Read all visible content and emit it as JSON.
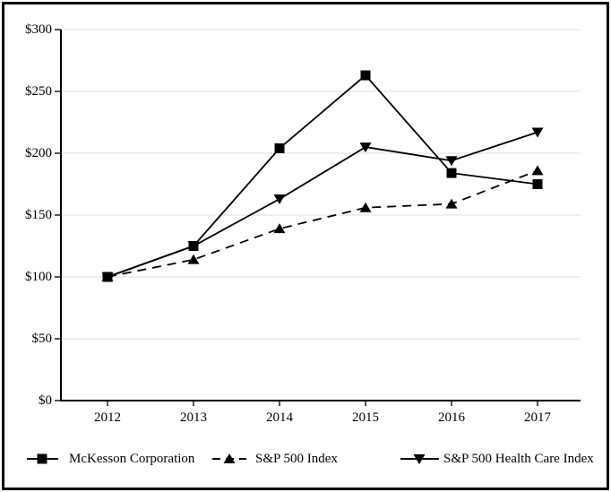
{
  "figure": {
    "kind": "cumulative-total-return-performance-graph",
    "background_color": "#ffffff",
    "frame_color": "#000000"
  },
  "chart_data": {
    "type": "line",
    "title": "",
    "xlabel": "",
    "ylabel": "",
    "categories": [
      "2012",
      "2013",
      "2014",
      "2015",
      "2016",
      "2017"
    ],
    "series": [
      {
        "name": "McKesson Corporation",
        "marker": "square",
        "line": "solid",
        "color": "#000000",
        "values": [
          100,
          125,
          204,
          263,
          184,
          175
        ]
      },
      {
        "name": "S&P 500 Index",
        "marker": "triangle-up",
        "line": "dashed",
        "color": "#000000",
        "values": [
          100,
          114,
          139,
          156,
          159,
          186
        ]
      },
      {
        "name": "S&P 500 Health Care Index",
        "marker": "triangle-down",
        "line": "solid",
        "color": "#000000",
        "values": [
          100,
          125,
          163,
          205,
          194,
          217
        ]
      }
    ],
    "ylim": [
      0,
      300
    ],
    "ytick_step": 50,
    "ytick_labels": [
      "$0",
      "$50",
      "$100",
      "$150",
      "$200",
      "$250",
      "$300"
    ],
    "grid": "horizontal",
    "legend_position": "bottom",
    "colors": {
      "line": "#000000",
      "grid": "#e8e8e8",
      "tick": "#1a1a1a",
      "text": "#000000"
    }
  }
}
